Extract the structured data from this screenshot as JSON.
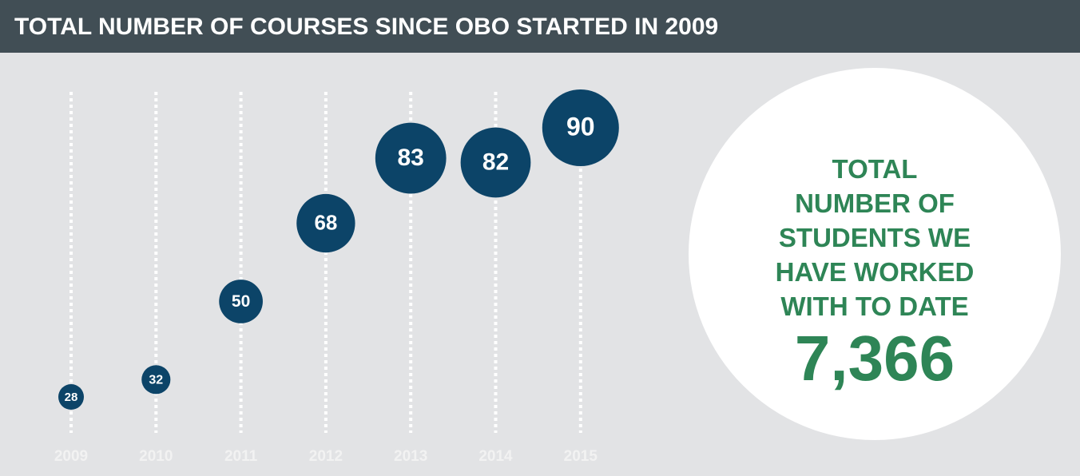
{
  "chart_data": {
    "type": "bubble",
    "title": "TOTAL NUMBER OF COURSES SINCE OBO STARTED IN 2009",
    "categories": [
      "2009",
      "2010",
      "2011",
      "2012",
      "2013",
      "2014",
      "2015"
    ],
    "values": [
      28,
      32,
      50,
      68,
      83,
      82,
      90
    ],
    "color": "#0c4468",
    "total_students": {
      "label": "TOTAL NUMBER OF STUDENTS WE HAVE WORKED WITH TO DATE",
      "value": "7,366"
    }
  }
}
